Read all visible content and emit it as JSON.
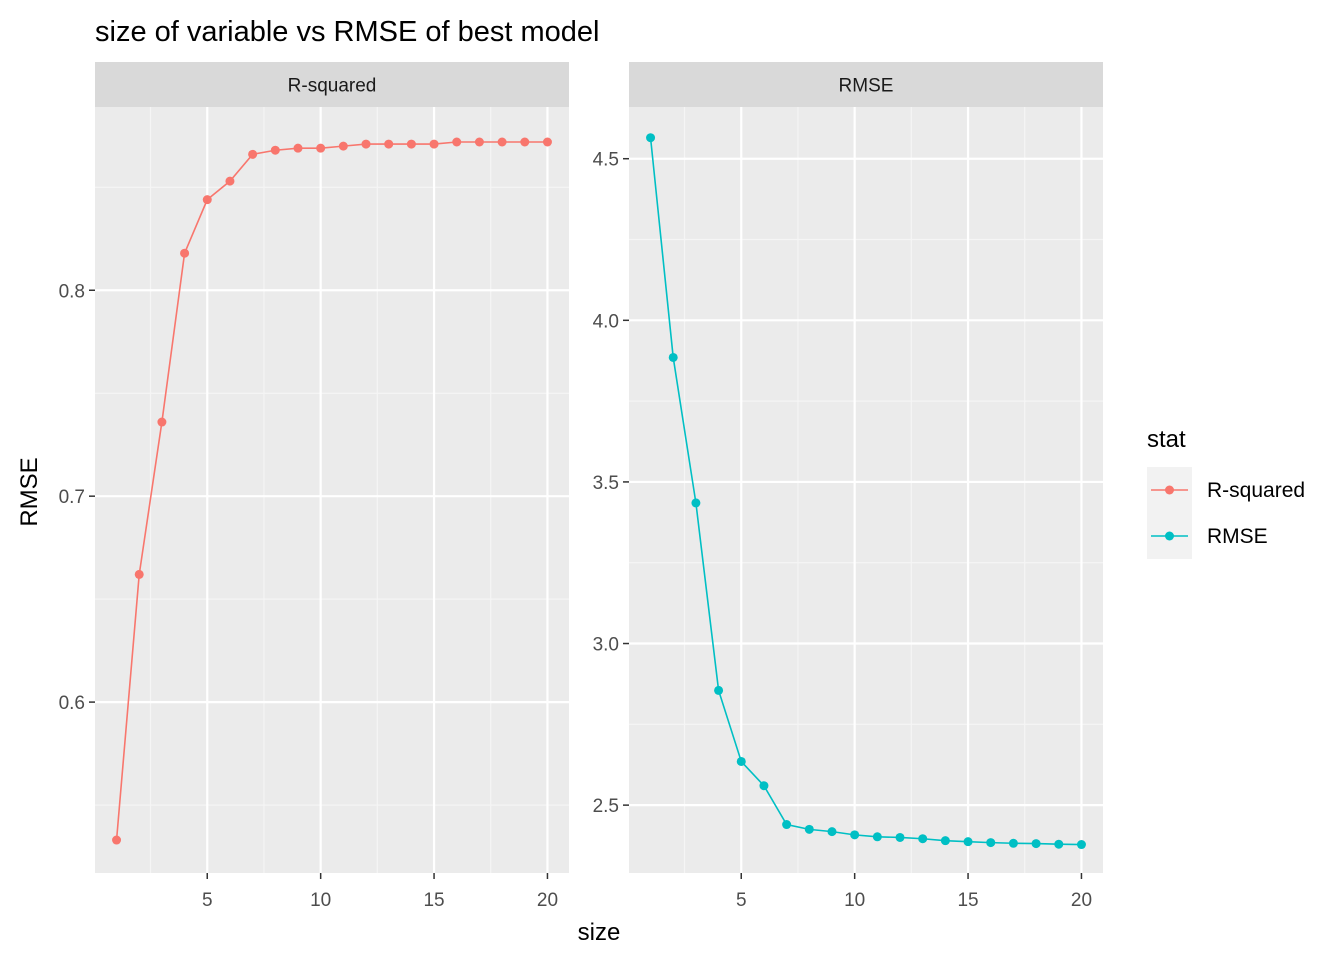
{
  "chart_data": {
    "type": "line",
    "title": "size of variable vs RMSE of best model",
    "xlabel": "size",
    "ylabel": "RMSE",
    "legend": {
      "title": "stat",
      "placement": "right",
      "entries": [
        "R-squared",
        "RMSE"
      ]
    },
    "grid": true,
    "panels": [
      {
        "strip": "R-squared",
        "series": "R-squared",
        "color": "#F8766D",
        "x": [
          1,
          2,
          3,
          4,
          5,
          6,
          7,
          8,
          9,
          10,
          11,
          12,
          13,
          14,
          15,
          16,
          17,
          18,
          19,
          20
        ],
        "y": [
          0.533,
          0.662,
          0.736,
          0.818,
          0.844,
          0.853,
          0.866,
          0.868,
          0.869,
          0.869,
          0.87,
          0.871,
          0.871,
          0.871,
          0.871,
          0.872,
          0.872,
          0.872,
          0.872,
          0.872
        ],
        "xlim": [
          0.05,
          20.95
        ],
        "ylim": [
          0.517,
          0.889
        ],
        "xticks": [
          5,
          10,
          15,
          20
        ],
        "yticks": [
          0.6,
          0.7,
          0.8
        ],
        "ytick_labels": [
          "0.6",
          "0.7",
          "0.8"
        ]
      },
      {
        "strip": "RMSE",
        "series": "RMSE",
        "color": "#00BFC4",
        "x": [
          1,
          2,
          3,
          4,
          5,
          6,
          7,
          8,
          9,
          10,
          11,
          12,
          13,
          14,
          15,
          16,
          17,
          18,
          19,
          20
        ],
        "y": [
          4.565,
          3.885,
          3.435,
          2.855,
          2.635,
          2.56,
          2.44,
          2.425,
          2.418,
          2.408,
          2.402,
          2.4,
          2.396,
          2.39,
          2.387,
          2.384,
          2.382,
          2.381,
          2.379,
          2.378
        ],
        "xlim": [
          0.05,
          20.95
        ],
        "ylim": [
          2.29,
          4.66
        ],
        "xticks": [
          5,
          10,
          15,
          20
        ],
        "yticks": [
          2.5,
          3.0,
          3.5,
          4.0,
          4.5
        ],
        "ytick_labels": [
          "2.5",
          "3.0",
          "3.5",
          "4.0",
          "4.5"
        ]
      }
    ]
  }
}
